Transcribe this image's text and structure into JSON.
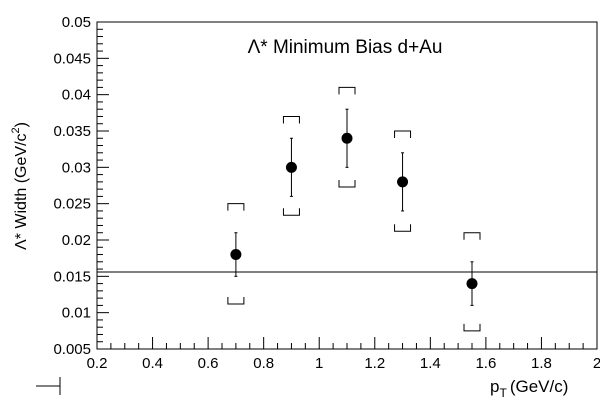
{
  "chart_data": {
    "type": "scatter",
    "title": "Λ* Minimum Bias d+Au",
    "xlabel_main": "p",
    "xlabel_sub": "T",
    "xlabel_unit": "(GeV/c)",
    "ylabel_main": "Λ* Width (GeV/c",
    "ylabel_sup": "2",
    "ylabel_close": ")",
    "xlim": [
      0.2,
      2.0
    ],
    "ylim": [
      0.005,
      0.05
    ],
    "x_ticks": [
      {
        "value": 0.2,
        "label": "0.2"
      },
      {
        "value": 0.4,
        "label": "0.4"
      },
      {
        "value": 0.6,
        "label": "0.6"
      },
      {
        "value": 0.8,
        "label": "0.8"
      },
      {
        "value": 1.0,
        "label": "1"
      },
      {
        "value": 1.2,
        "label": "1.2"
      },
      {
        "value": 1.4,
        "label": "1.4"
      },
      {
        "value": 1.6,
        "label": "1.6"
      },
      {
        "value": 1.8,
        "label": "1.8"
      },
      {
        "value": 2.0,
        "label": "2"
      }
    ],
    "y_ticks": [
      {
        "value": 0.005,
        "label": "0.005"
      },
      {
        "value": 0.01,
        "label": "0.01"
      },
      {
        "value": 0.015,
        "label": "0.015"
      },
      {
        "value": 0.02,
        "label": "0.02"
      },
      {
        "value": 0.025,
        "label": "0.025"
      },
      {
        "value": 0.03,
        "label": "0.03"
      },
      {
        "value": 0.035,
        "label": "0.035"
      },
      {
        "value": 0.04,
        "label": "0.04"
      },
      {
        "value": 0.045,
        "label": "0.045"
      },
      {
        "value": 0.05,
        "label": "0.05"
      }
    ],
    "reference_line_y": 0.0156,
    "points": [
      {
        "x": 0.7,
        "y": 0.018,
        "stat_low": 0.015,
        "stat_high": 0.021,
        "sys_low": 0.0112,
        "sys_high": 0.025
      },
      {
        "x": 0.9,
        "y": 0.03,
        "stat_low": 0.026,
        "stat_high": 0.034,
        "sys_low": 0.0234,
        "sys_high": 0.037
      },
      {
        "x": 1.1,
        "y": 0.034,
        "stat_low": 0.03,
        "stat_high": 0.038,
        "sys_low": 0.0273,
        "sys_high": 0.041
      },
      {
        "x": 1.3,
        "y": 0.028,
        "stat_low": 0.024,
        "stat_high": 0.032,
        "sys_low": 0.0212,
        "sys_high": 0.035
      },
      {
        "x": 1.55,
        "y": 0.014,
        "stat_low": 0.011,
        "stat_high": 0.017,
        "sys_low": 0.0075,
        "sys_high": 0.021
      }
    ],
    "grid": false,
    "legend": "none"
  }
}
